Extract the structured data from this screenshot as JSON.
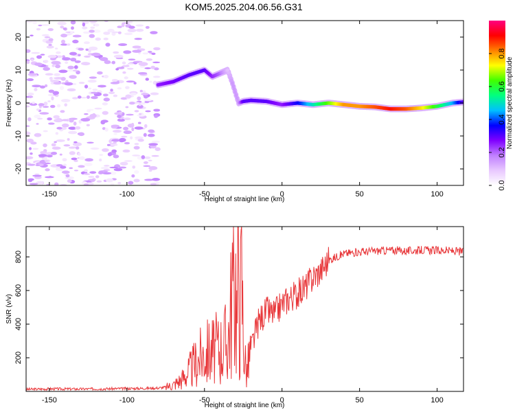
{
  "figure": {
    "title": "KOM5.2025.204.06.56.G31"
  },
  "chart_data": [
    {
      "type": "heatmap",
      "title": "KOM5.2025.204.06.56.G31",
      "xlabel": "Height of straight line (km)",
      "ylabel": "Frequency (Hz)",
      "xlim": [
        -165,
        117
      ],
      "ylim": [
        -25,
        25
      ],
      "x_ticks": [
        -150,
        -100,
        -50,
        0,
        50,
        100
      ],
      "y_ticks": [
        -20,
        -10,
        0,
        10,
        20
      ],
      "colorbar": {
        "label": "Normalized spectral amplitude",
        "range": [
          0.0,
          1.0
        ],
        "ticks": [
          0.0,
          0.2,
          0.4,
          0.6,
          0.8
        ],
        "colors": [
          "#ffffff",
          "#e8c8ff",
          "#c080ff",
          "#8000ff",
          "#0000ff",
          "#00c0ff",
          "#00ff80",
          "#40ff00",
          "#ffff00",
          "#ff8000",
          "#ff0000",
          "#ff0080"
        ]
      },
      "noise_region": {
        "x": [
          -165,
          -80
        ],
        "y": [
          -25,
          25
        ],
        "level": "low (0.0-0.2)"
      },
      "signal_track": {
        "x": [
          -80,
          -70,
          -60,
          -50,
          -45,
          -40,
          -35,
          -32,
          -30,
          -28,
          -25,
          -20,
          -10,
          0,
          10,
          20,
          30,
          40,
          50,
          60,
          70,
          80,
          90,
          100,
          110,
          117
        ],
        "frequency": [
          5.5,
          6.5,
          8.5,
          10,
          8,
          9,
          10,
          6,
          3,
          0,
          0.5,
          0.8,
          0.5,
          -0.5,
          0,
          -0.5,
          0,
          -0.5,
          -1,
          -1.2,
          -1.8,
          -1.8,
          -1.5,
          -1,
          0,
          0.3
        ],
        "amplitude": [
          0.25,
          0.28,
          0.3,
          0.3,
          0.25,
          0.2,
          0.1,
          0.15,
          0.15,
          0.15,
          0.3,
          0.3,
          0.3,
          0.25,
          0.35,
          0.5,
          0.65,
          0.8,
          0.8,
          0.85,
          0.9,
          0.85,
          0.75,
          0.6,
          0.45,
          0.3
        ]
      }
    },
    {
      "type": "line",
      "xlabel": "Height of straight line (km)",
      "ylabel": "SNR (v/v)",
      "xlim": [
        -165,
        117
      ],
      "ylim": [
        0,
        980
      ],
      "x_ticks": [
        -150,
        -100,
        -50,
        0,
        50,
        100
      ],
      "y_ticks": [
        200,
        400,
        600,
        800
      ],
      "series": [
        {
          "color": "#e8373a",
          "x": [
            -165,
            -150,
            -130,
            -110,
            -90,
            -80,
            -75,
            -70,
            -65,
            -60,
            -55,
            -50,
            -45,
            -40,
            -35,
            -32,
            -30,
            -29,
            -28,
            -27,
            -26,
            -25,
            -23,
            -20,
            -15,
            -10,
            -5,
            0,
            5,
            10,
            15,
            20,
            25,
            30,
            35,
            40,
            50,
            60,
            70,
            80,
            90,
            100,
            110,
            117
          ],
          "values": [
            12,
            15,
            14,
            16,
            18,
            20,
            25,
            40,
            70,
            120,
            180,
            230,
            240,
            260,
            300,
            600,
            700,
            400,
            850,
            500,
            700,
            350,
            100,
            250,
            420,
            480,
            460,
            520,
            560,
            580,
            620,
            680,
            720,
            780,
            800,
            820,
            830,
            835,
            840,
            835,
            840,
            838,
            835,
            830
          ]
        }
      ]
    }
  ]
}
